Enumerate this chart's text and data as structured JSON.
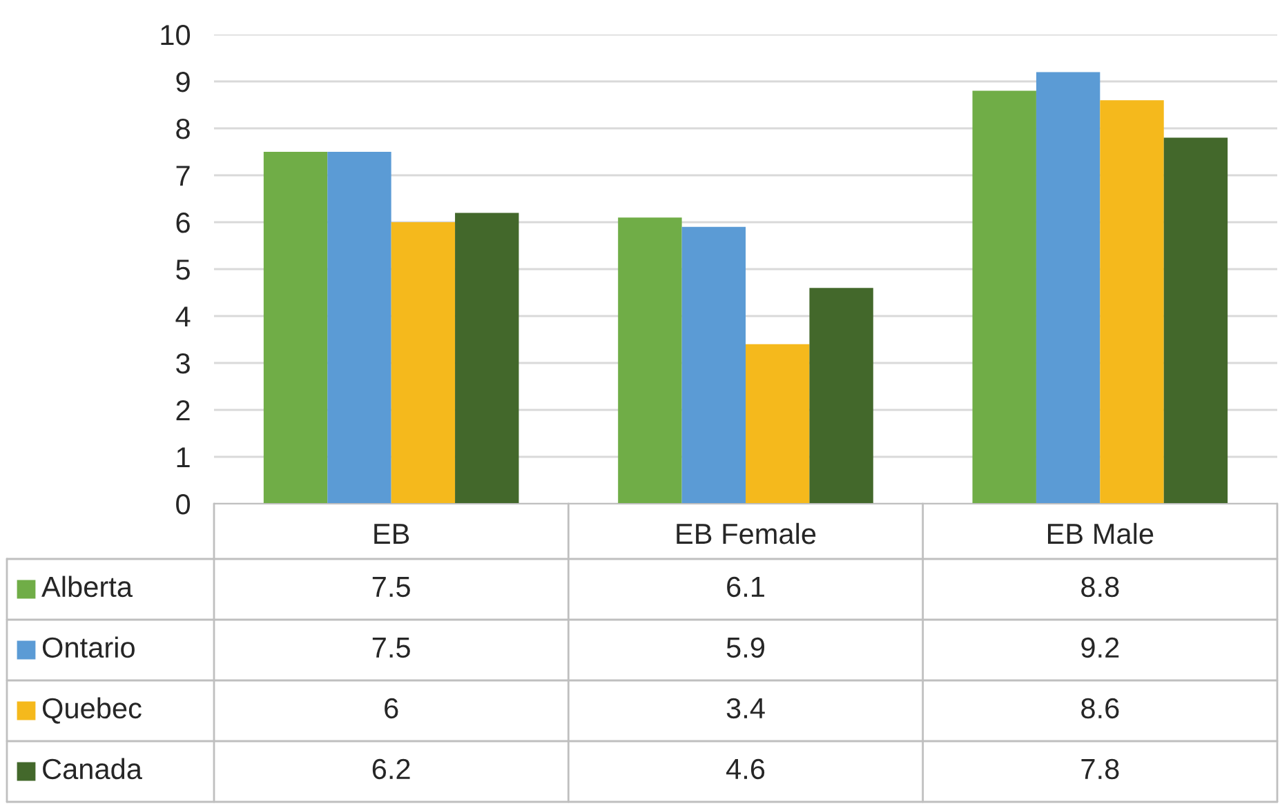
{
  "chart_data": {
    "type": "bar",
    "categories": [
      "EB",
      "EB Female",
      "EB Male"
    ],
    "series": [
      {
        "name": "Alberta",
        "color": "#70ad47",
        "values": [
          7.5,
          6.1,
          8.8
        ]
      },
      {
        "name": "Ontario",
        "color": "#5b9bd5",
        "values": [
          7.5,
          5.9,
          9.2
        ]
      },
      {
        "name": "Quebec",
        "color": "#f5b91c",
        "values": [
          6,
          3.4,
          8.6
        ]
      },
      {
        "name": "Canada",
        "color": "#43682b",
        "values": [
          6.2,
          4.6,
          7.8
        ]
      }
    ],
    "ylim": [
      0,
      10
    ],
    "yticks": [
      0,
      1,
      2,
      3,
      4,
      5,
      6,
      7,
      8,
      9,
      10
    ],
    "grid": "y",
    "data_labels": true,
    "legend": "bottom left"
  }
}
